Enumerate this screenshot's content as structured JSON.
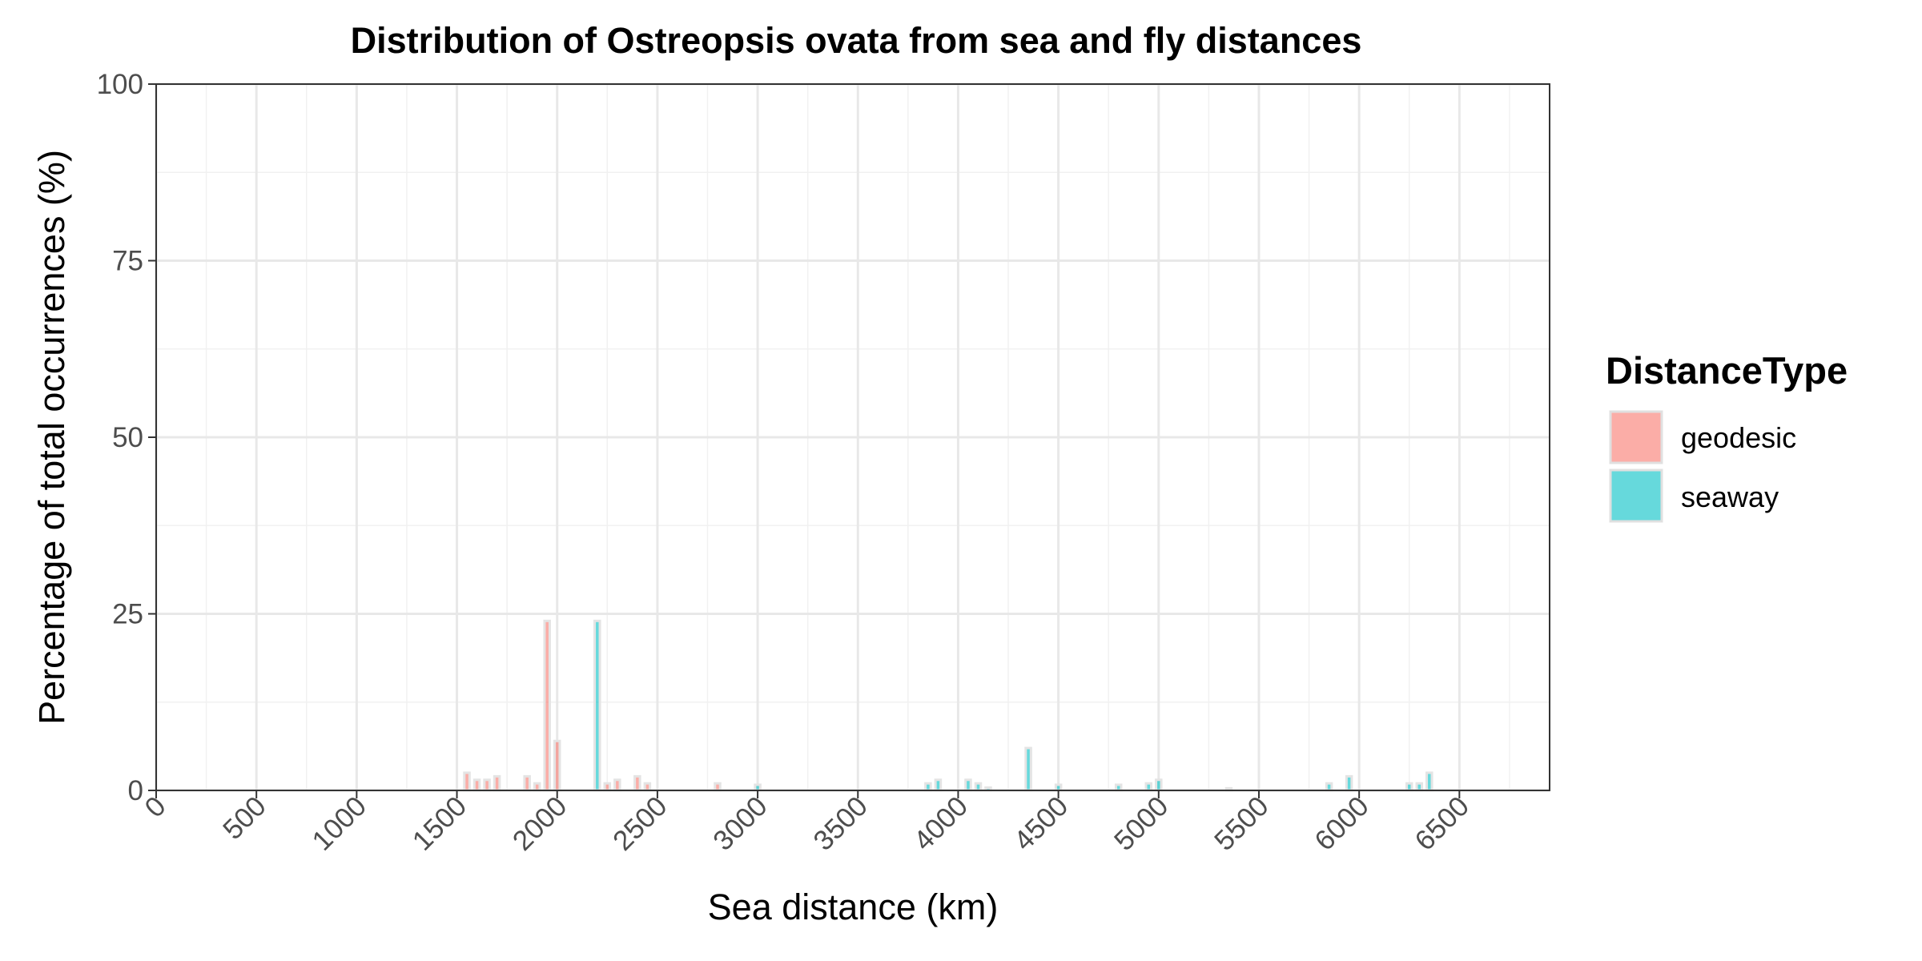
{
  "chart_data": {
    "type": "bar",
    "title": "Distribution of Ostreopsis ovata from sea and fly distances",
    "xlabel": "Sea distance (km)",
    "ylabel": "Percentage of total occurrences (%)",
    "xlim": [
      0,
      6950
    ],
    "ylim": [
      0,
      100
    ],
    "x_ticks": [
      "0",
      "500",
      "1000",
      "1500",
      "2000",
      "2500",
      "3000",
      "3500",
      "4000",
      "4500",
      "5000",
      "5500",
      "6000",
      "6500"
    ],
    "y_ticks": [
      "0",
      "25",
      "50",
      "75",
      "100"
    ],
    "grid": true,
    "bin_width": 50,
    "legend": {
      "title": "DistanceType",
      "position": "right",
      "entries": [
        "geodesic",
        "seaway"
      ]
    },
    "series": [
      {
        "name": "geodesic",
        "color": "#F8766D",
        "points": [
          {
            "x": 1550,
            "y": 2.5
          },
          {
            "x": 1600,
            "y": 1.5
          },
          {
            "x": 1650,
            "y": 1.5
          },
          {
            "x": 1700,
            "y": 2.0
          },
          {
            "x": 1850,
            "y": 2.0
          },
          {
            "x": 1900,
            "y": 1.0
          },
          {
            "x": 1950,
            "y": 24.0
          },
          {
            "x": 2000,
            "y": 7.0
          },
          {
            "x": 2250,
            "y": 1.0
          },
          {
            "x": 2300,
            "y": 1.5
          },
          {
            "x": 2400,
            "y": 2.0
          },
          {
            "x": 2450,
            "y": 1.0
          },
          {
            "x": 2800,
            "y": 1.0
          },
          {
            "x": 5350,
            "y": 0.3
          }
        ]
      },
      {
        "name": "seaway",
        "color": "#00BFC4",
        "points": [
          {
            "x": 2200,
            "y": 24.0
          },
          {
            "x": 3000,
            "y": 0.8
          },
          {
            "x": 3850,
            "y": 1.0
          },
          {
            "x": 3900,
            "y": 1.5
          },
          {
            "x": 4050,
            "y": 1.5
          },
          {
            "x": 4100,
            "y": 1.0
          },
          {
            "x": 4150,
            "y": 0.4
          },
          {
            "x": 4350,
            "y": 6.0
          },
          {
            "x": 4500,
            "y": 0.8
          },
          {
            "x": 4800,
            "y": 0.8
          },
          {
            "x": 4950,
            "y": 1.0
          },
          {
            "x": 5000,
            "y": 1.5
          },
          {
            "x": 5850,
            "y": 1.0
          },
          {
            "x": 5950,
            "y": 2.0
          },
          {
            "x": 6250,
            "y": 1.0
          },
          {
            "x": 6300,
            "y": 1.0
          },
          {
            "x": 6350,
            "y": 2.5
          }
        ]
      }
    ]
  }
}
